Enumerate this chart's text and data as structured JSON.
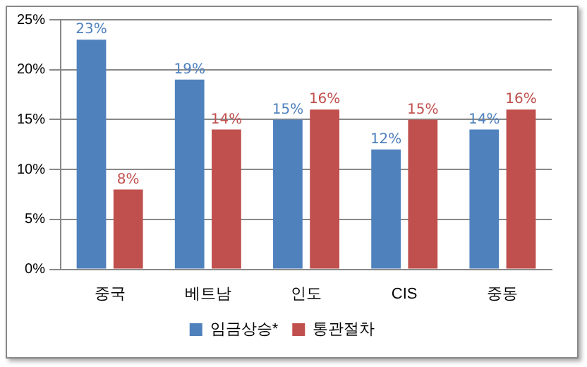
{
  "chart_data": {
    "type": "bar",
    "categories": [
      "중국",
      "베트남",
      "인도",
      "CIS",
      "중동"
    ],
    "series": [
      {
        "name": "임금상승*",
        "color": "#4f81bd",
        "values": [
          23,
          19,
          15,
          12,
          14
        ],
        "value_labels": [
          "23%",
          "19%",
          "15%",
          "12%",
          "14%"
        ]
      },
      {
        "name": "통관절차",
        "color": "#c0504d",
        "values": [
          8,
          14,
          16,
          15,
          16
        ],
        "value_labels": [
          "8%",
          "14%",
          "16%",
          "15%",
          "16%"
        ]
      }
    ],
    "ylim": [
      0,
      25
    ],
    "yticks": [
      {
        "value": 0,
        "label": "0%"
      },
      {
        "value": 5,
        "label": "5%"
      },
      {
        "value": 10,
        "label": "10%"
      },
      {
        "value": 15,
        "label": "15%"
      },
      {
        "value": 20,
        "label": "20%"
      },
      {
        "value": 25,
        "label": "25%"
      }
    ],
    "grid": "y",
    "legend": "bottom"
  }
}
